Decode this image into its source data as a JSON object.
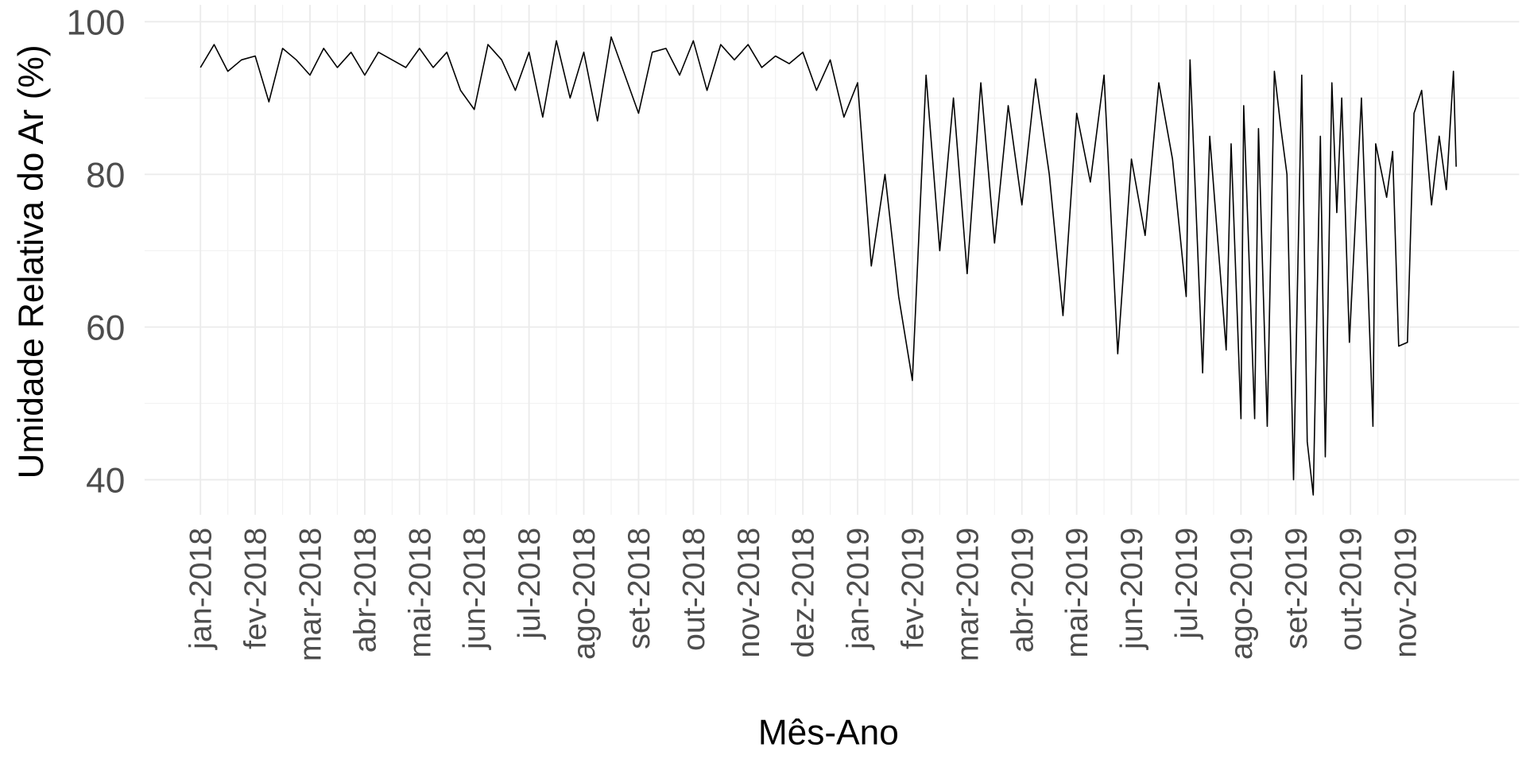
{
  "chart_data": {
    "type": "line",
    "x_label": "Mês-Ano",
    "y_label": "Umidade Relativa do Ar (%)",
    "xlim": [
      -1.02,
      24.08
    ],
    "ylim": [
      35.4,
      102.2
    ],
    "yticks": [
      40,
      60,
      80,
      100
    ],
    "xticks": [
      {
        "value": 0,
        "label": "jan-2018"
      },
      {
        "value": 1,
        "label": "fev-2018"
      },
      {
        "value": 2,
        "label": "mar-2018"
      },
      {
        "value": 3,
        "label": "abr-2018"
      },
      {
        "value": 4,
        "label": "mai-2018"
      },
      {
        "value": 5,
        "label": "jun-2018"
      },
      {
        "value": 6,
        "label": "jul-2018"
      },
      {
        "value": 7,
        "label": "ago-2018"
      },
      {
        "value": 8,
        "label": "set-2018"
      },
      {
        "value": 9,
        "label": "out-2018"
      },
      {
        "value": 10,
        "label": "nov-2018"
      },
      {
        "value": 11,
        "label": "dez-2018"
      },
      {
        "value": 12,
        "label": "jan-2019"
      },
      {
        "value": 13,
        "label": "fev-2019"
      },
      {
        "value": 14,
        "label": "mar-2019"
      },
      {
        "value": 15,
        "label": "abr-2019"
      },
      {
        "value": 16,
        "label": "mai-2019"
      },
      {
        "value": 17,
        "label": "jun-2019"
      },
      {
        "value": 18,
        "label": "jul-2019"
      },
      {
        "value": 19,
        "label": "ago-2019"
      },
      {
        "value": 20,
        "label": "set-2019"
      },
      {
        "value": 21,
        "label": "out-2019"
      },
      {
        "value": 22,
        "label": "nov-2019"
      }
    ],
    "grid": true,
    "x": [
      0,
      0.25,
      0.5,
      0.75,
      1,
      1.25,
      1.5,
      1.75,
      2,
      2.25,
      2.5,
      2.75,
      3,
      3.25,
      3.5,
      3.75,
      4,
      4.25,
      4.5,
      4.75,
      5,
      5.25,
      5.5,
      5.75,
      6,
      6.25,
      6.5,
      6.75,
      7,
      7.25,
      7.5,
      7.75,
      8,
      8.25,
      8.5,
      8.75,
      9,
      9.25,
      9.5,
      9.75,
      10,
      10.25,
      10.5,
      10.75,
      11,
      11.25,
      11.5,
      11.75,
      12,
      12.25,
      12.5,
      12.75,
      13,
      13.25,
      13.5,
      13.75,
      14,
      14.25,
      14.5,
      14.75,
      15,
      15.25,
      15.5,
      15.75,
      16,
      16.25,
      16.5,
      16.75,
      17,
      17.25,
      17.5,
      17.75,
      18,
      18.07,
      18.3,
      18.43,
      18.73,
      18.82,
      19,
      19.05,
      19.25,
      19.32,
      19.48,
      19.61,
      19.73,
      19.84,
      19.96,
      20.11,
      20.21,
      20.32,
      20.45,
      20.54,
      20.66,
      20.75,
      20.84,
      20.98,
      21.2,
      21.41,
      21.46,
      21.66,
      21.77,
      21.88,
      22.04,
      22.16,
      22.3,
      22.48,
      22.62,
      22.75,
      22.88,
      22.93
    ],
    "series": [
      {
        "color": "#000000",
        "values": [
          94,
          97,
          93.5,
          95,
          95.5,
          89.5,
          96.5,
          95,
          93,
          96.5,
          94,
          96,
          93,
          96,
          95,
          94,
          96.5,
          94,
          96,
          91,
          88.5,
          97,
          95,
          91,
          96,
          87.5,
          97.5,
          90,
          96,
          87,
          98,
          93,
          88,
          96,
          96.5,
          93,
          97.5,
          91,
          97,
          95,
          97,
          94,
          95.5,
          94.5,
          96,
          91,
          95,
          87.5,
          92,
          68,
          80,
          64,
          53,
          93,
          70,
          90,
          67,
          92,
          71,
          89,
          76,
          92.5,
          80,
          61.5,
          88,
          79,
          93,
          56.5,
          82,
          72,
          92,
          82,
          64,
          95,
          54,
          85,
          57,
          84,
          48,
          89,
          48,
          86,
          47,
          93.5,
          86,
          80,
          40,
          93,
          45,
          38,
          85,
          43,
          92,
          75,
          90,
          58,
          90,
          47,
          84,
          77,
          83,
          57.5,
          58,
          88,
          91,
          76,
          85,
          78,
          93.5,
          81
        ]
      }
    ]
  }
}
